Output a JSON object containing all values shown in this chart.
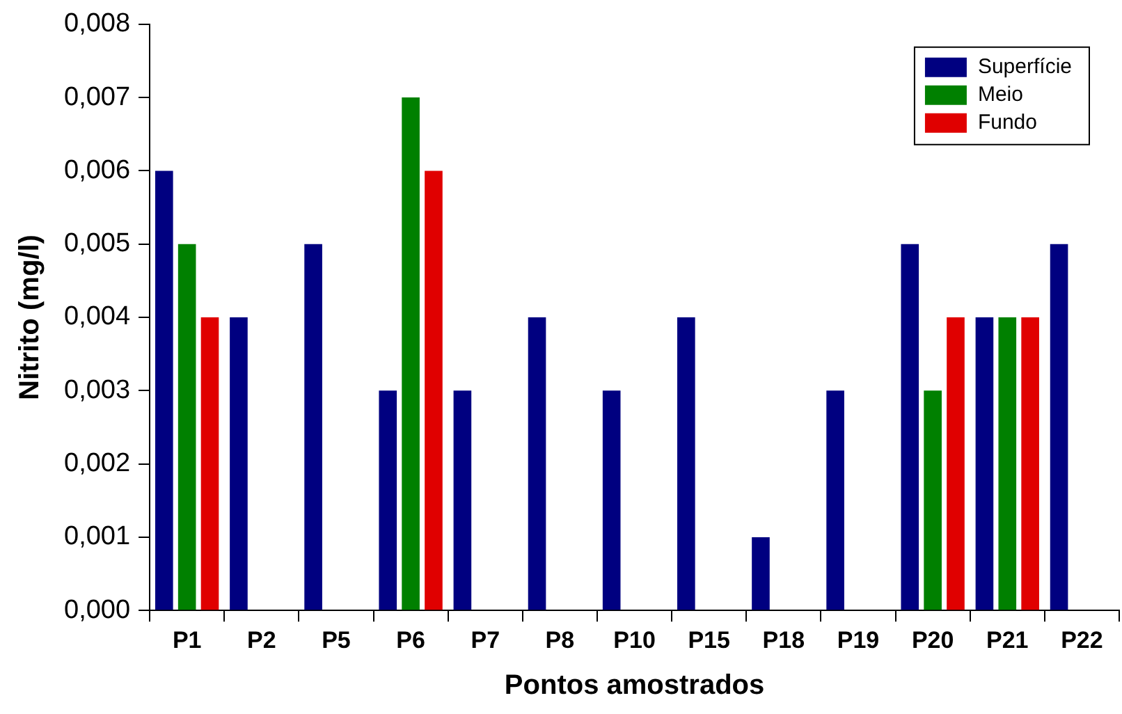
{
  "chart_data": {
    "type": "bar",
    "xlabel": "Pontos amostrados",
    "ylabel": "Nitrito (mg/l)",
    "categories": [
      "P1",
      "P2",
      "P5",
      "P6",
      "P7",
      "P8",
      "P10",
      "P15",
      "P18",
      "P19",
      "P20",
      "P21",
      "P22"
    ],
    "series": [
      {
        "name": "Superfície",
        "color": "#000080",
        "values": [
          0.006,
          0.004,
          0.005,
          0.003,
          0.003,
          0.004,
          0.003,
          0.004,
          0.001,
          0.003,
          0.005,
          0.004,
          0.005
        ]
      },
      {
        "name": "Meio",
        "color": "#008000",
        "values": [
          0.005,
          null,
          null,
          0.007,
          null,
          null,
          null,
          null,
          null,
          null,
          0.003,
          0.004,
          null
        ]
      },
      {
        "name": "Fundo",
        "color": "#e00000",
        "values": [
          0.004,
          null,
          null,
          0.006,
          null,
          null,
          null,
          null,
          null,
          null,
          0.004,
          0.004,
          null
        ]
      }
    ],
    "ylim": [
      0,
      0.008
    ],
    "yticks": [
      {
        "value": 0,
        "label": "0,000"
      },
      {
        "value": 0.001,
        "label": "0,001"
      },
      {
        "value": 0.002,
        "label": "0,002"
      },
      {
        "value": 0.003,
        "label": "0,003"
      },
      {
        "value": 0.004,
        "label": "0,004"
      },
      {
        "value": 0.005,
        "label": "0,005"
      },
      {
        "value": 0.006,
        "label": "0,006"
      },
      {
        "value": 0.007,
        "label": "0,007"
      },
      {
        "value": 0.008,
        "label": "0,008"
      }
    ],
    "grid": false,
    "legend": "top right"
  }
}
